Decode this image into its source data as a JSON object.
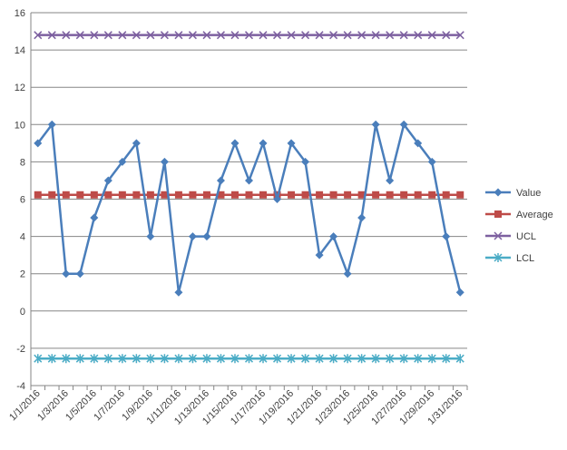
{
  "chart_data": {
    "type": "line",
    "title": "",
    "xlabel": "",
    "ylabel": "",
    "ylim": [
      -4,
      16
    ],
    "y_ticks": [
      -4,
      -2,
      0,
      2,
      4,
      6,
      8,
      10,
      12,
      14,
      16
    ],
    "grid": "horizontal",
    "legend_position": "right",
    "categories": [
      "1/1/2016",
      "1/2/2016",
      "1/3/2016",
      "1/4/2016",
      "1/5/2016",
      "1/6/2016",
      "1/7/2016",
      "1/8/2016",
      "1/9/2016",
      "1/10/2016",
      "1/11/2016",
      "1/12/2016",
      "1/13/2016",
      "1/14/2016",
      "1/15/2016",
      "1/16/2016",
      "1/17/2016",
      "1/18/2016",
      "1/19/2016",
      "1/20/2016",
      "1/21/2016",
      "1/22/2016",
      "1/23/2016",
      "1/24/2016",
      "1/25/2016",
      "1/26/2016",
      "1/27/2016",
      "1/28/2016",
      "1/29/2016",
      "1/30/2016",
      "1/31/2016"
    ],
    "tick_labels": [
      "1/1/2016",
      "1/3/2016",
      "1/5/2016",
      "1/7/2016",
      "1/9/2016",
      "1/11/2016",
      "1/13/2016",
      "1/15/2016",
      "1/17/2016",
      "1/19/2016",
      "1/21/2016",
      "1/23/2016",
      "1/25/2016",
      "1/27/2016",
      "1/29/2016",
      "1/31/2016"
    ],
    "series": [
      {
        "name": "Value",
        "color": "#4a7ebb",
        "marker": "diamond",
        "values": [
          9,
          10,
          2,
          2,
          5,
          7,
          8,
          9,
          4,
          8,
          1,
          4,
          4,
          7,
          9,
          7,
          9,
          6,
          9,
          8,
          3,
          4,
          2,
          5,
          10,
          7,
          10,
          9,
          8,
          4,
          1
        ]
      },
      {
        "name": "Average",
        "color": "#be4b48",
        "marker": "square",
        "values": [
          6.23,
          6.23,
          6.23,
          6.23,
          6.23,
          6.23,
          6.23,
          6.23,
          6.23,
          6.23,
          6.23,
          6.23,
          6.23,
          6.23,
          6.23,
          6.23,
          6.23,
          6.23,
          6.23,
          6.23,
          6.23,
          6.23,
          6.23,
          6.23,
          6.23,
          6.23,
          6.23,
          6.23,
          6.23,
          6.23,
          6.23
        ]
      },
      {
        "name": "UCL",
        "color": "#7d60a0",
        "marker": "x",
        "values": [
          14.8,
          14.8,
          14.8,
          14.8,
          14.8,
          14.8,
          14.8,
          14.8,
          14.8,
          14.8,
          14.8,
          14.8,
          14.8,
          14.8,
          14.8,
          14.8,
          14.8,
          14.8,
          14.8,
          14.8,
          14.8,
          14.8,
          14.8,
          14.8,
          14.8,
          14.8,
          14.8,
          14.8,
          14.8,
          14.8,
          14.8
        ]
      },
      {
        "name": "LCL",
        "color": "#4bacc6",
        "marker": "star",
        "values": [
          -2.55,
          -2.55,
          -2.55,
          -2.55,
          -2.55,
          -2.55,
          -2.55,
          -2.55,
          -2.55,
          -2.55,
          -2.55,
          -2.55,
          -2.55,
          -2.55,
          -2.55,
          -2.55,
          -2.55,
          -2.55,
          -2.55,
          -2.55,
          -2.55,
          -2.55,
          -2.55,
          -2.55,
          -2.55,
          -2.55,
          -2.55,
          -2.55,
          -2.55,
          -2.55,
          -2.55
        ]
      }
    ]
  }
}
